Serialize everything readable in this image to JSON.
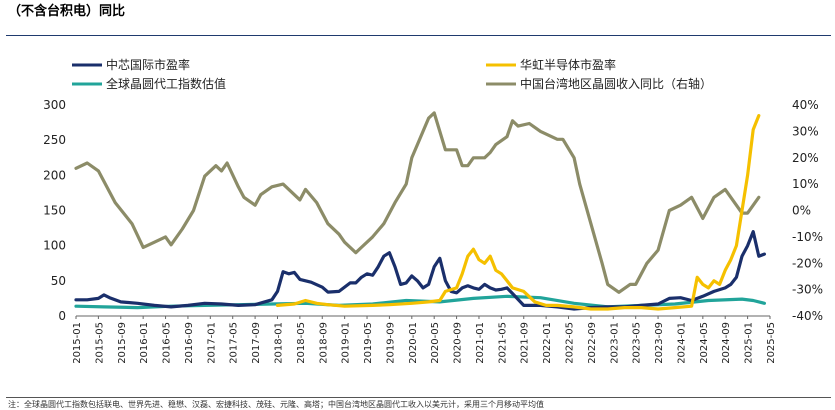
{
  "header": {
    "title": "（不含台积电）同比"
  },
  "footnote": "注：全球晶圆代工指数包括联电、世界先进、稳懋、汉磊、宏捷科技、茂硅、元隆、高塔；中国台湾地区晶圆代工收入以美元计，采用三个月移动平均值",
  "chart_data": {
    "type": "line",
    "title": "",
    "x_labels": [
      "2015-01",
      "2015-05",
      "2015-09",
      "2016-01",
      "2016-05",
      "2016-09",
      "2017-01",
      "2017-05",
      "2017-09",
      "2018-01",
      "2018-05",
      "2018-09",
      "2019-01",
      "2019-05",
      "2019-09",
      "2020-01",
      "2020-05",
      "2020-09",
      "2021-01",
      "2021-05",
      "2021-09",
      "2022-01",
      "2022-05",
      "2022-09",
      "2023-01",
      "2023-05",
      "2023-09",
      "2024-01",
      "2024-05",
      "2024-09",
      "2025-01",
      "2025-05"
    ],
    "x_start": "2015-01",
    "x_end": "2025-05",
    "left_axis": {
      "min": 0,
      "max": 300,
      "ticks": [
        "0",
        "50",
        "100",
        "150",
        "200",
        "250",
        "300"
      ]
    },
    "right_axis": {
      "min": -40,
      "max": 40,
      "ticks": [
        "-40%",
        "-30%",
        "-20%",
        "-10%",
        "0%",
        "10%",
        "20%",
        "30%",
        "40%"
      ]
    },
    "legend": [
      {
        "name": "中芯国际市盈率",
        "color": "#1a2f6b"
      },
      {
        "name": "华虹半导体市盈率",
        "color": "#f5c000"
      },
      {
        "name": "全球晶圆代工指数估值",
        "color": "#21a49a"
      },
      {
        "name": "中国台湾地区晶圆收入同比（右轴）",
        "color": "#8c8c68"
      }
    ],
    "series": [
      {
        "name": "中芯国际市盈率",
        "axis": "left",
        "color": "#1a2f6b",
        "points": [
          [
            "2015-01",
            23
          ],
          [
            "2015-03",
            23
          ],
          [
            "2015-05",
            25
          ],
          [
            "2015-06",
            30
          ],
          [
            "2015-07",
            26
          ],
          [
            "2015-09",
            20
          ],
          [
            "2015-12",
            18
          ],
          [
            "2016-03",
            15
          ],
          [
            "2016-06",
            13
          ],
          [
            "2016-09",
            15
          ],
          [
            "2016-12",
            18
          ],
          [
            "2017-03",
            17
          ],
          [
            "2017-06",
            15
          ],
          [
            "2017-09",
            16
          ],
          [
            "2017-12",
            23
          ],
          [
            "2018-01",
            35
          ],
          [
            "2018-02",
            63
          ],
          [
            "2018-03",
            60
          ],
          [
            "2018-04",
            62
          ],
          [
            "2018-05",
            52
          ],
          [
            "2018-07",
            48
          ],
          [
            "2018-09",
            41
          ],
          [
            "2018-10",
            34
          ],
          [
            "2018-12",
            35
          ],
          [
            "2019-02",
            47
          ],
          [
            "2019-03",
            47
          ],
          [
            "2019-04",
            55
          ],
          [
            "2019-05",
            60
          ],
          [
            "2019-06",
            58
          ],
          [
            "2019-07",
            70
          ],
          [
            "2019-08",
            85
          ],
          [
            "2019-09",
            90
          ],
          [
            "2019-10",
            70
          ],
          [
            "2019-11",
            45
          ],
          [
            "2019-12",
            47
          ],
          [
            "2020-01",
            57
          ],
          [
            "2020-02",
            50
          ],
          [
            "2020-03",
            40
          ],
          [
            "2020-04",
            45
          ],
          [
            "2020-05",
            70
          ],
          [
            "2020-06",
            82
          ],
          [
            "2020-07",
            50
          ],
          [
            "2020-08",
            35
          ],
          [
            "2020-09",
            33
          ],
          [
            "2020-10",
            40
          ],
          [
            "2020-11",
            43
          ],
          [
            "2020-12",
            40
          ],
          [
            "2021-01",
            38
          ],
          [
            "2021-02",
            45
          ],
          [
            "2021-03",
            40
          ],
          [
            "2021-04",
            37
          ],
          [
            "2021-05",
            38
          ],
          [
            "2021-06",
            40
          ],
          [
            "2021-07",
            32
          ],
          [
            "2021-09",
            15
          ],
          [
            "2021-12",
            15
          ],
          [
            "2022-03",
            13
          ],
          [
            "2022-06",
            10
          ],
          [
            "2022-09",
            12
          ],
          [
            "2022-12",
            13
          ],
          [
            "2023-03",
            13
          ],
          [
            "2023-06",
            15
          ],
          [
            "2023-09",
            17
          ],
          [
            "2023-11",
            25
          ],
          [
            "2024-01",
            26
          ],
          [
            "2024-03",
            22
          ],
          [
            "2024-05",
            28
          ],
          [
            "2024-07",
            35
          ],
          [
            "2024-09",
            40
          ],
          [
            "2024-10",
            45
          ],
          [
            "2024-11",
            55
          ],
          [
            "2024-12",
            85
          ],
          [
            "2025-01",
            100
          ],
          [
            "2025-02",
            120
          ],
          [
            "2025-03",
            85
          ],
          [
            "2025-04",
            88
          ]
        ]
      },
      {
        "name": "华虹半导体市盈率",
        "axis": "left",
        "color": "#f5c000",
        "points": [
          [
            "2018-01",
            15
          ],
          [
            "2018-04",
            17
          ],
          [
            "2018-06",
            22
          ],
          [
            "2018-08",
            18
          ],
          [
            "2018-10",
            16
          ],
          [
            "2019-01",
            14
          ],
          [
            "2019-06",
            15
          ],
          [
            "2019-09",
            16
          ],
          [
            "2020-01",
            18
          ],
          [
            "2020-04",
            20
          ],
          [
            "2020-06",
            22
          ],
          [
            "2020-07",
            35
          ],
          [
            "2020-09",
            40
          ],
          [
            "2020-10",
            60
          ],
          [
            "2020-11",
            85
          ],
          [
            "2020-12",
            95
          ],
          [
            "2021-01",
            80
          ],
          [
            "2021-02",
            75
          ],
          [
            "2021-03",
            85
          ],
          [
            "2021-04",
            65
          ],
          [
            "2021-05",
            60
          ],
          [
            "2021-06",
            50
          ],
          [
            "2021-07",
            40
          ],
          [
            "2021-09",
            35
          ],
          [
            "2021-11",
            20
          ],
          [
            "2022-01",
            15
          ],
          [
            "2022-03",
            15
          ],
          [
            "2022-06",
            13
          ],
          [
            "2022-09",
            10
          ],
          [
            "2022-12",
            10
          ],
          [
            "2023-03",
            12
          ],
          [
            "2023-06",
            12
          ],
          [
            "2023-09",
            10
          ],
          [
            "2023-12",
            12
          ],
          [
            "2024-03",
            14
          ],
          [
            "2024-04",
            55
          ],
          [
            "2024-05",
            45
          ],
          [
            "2024-06",
            40
          ],
          [
            "2024-07",
            50
          ],
          [
            "2024-08",
            45
          ],
          [
            "2024-09",
            65
          ],
          [
            "2024-10",
            80
          ],
          [
            "2024-11",
            100
          ],
          [
            "2025-01",
            200
          ],
          [
            "2025-02",
            265
          ],
          [
            "2025-03",
            285
          ]
        ]
      },
      {
        "name": "全球晶圆代工指数估值",
        "axis": "left",
        "color": "#21a49a",
        "points": [
          [
            "2015-01",
            14
          ],
          [
            "2015-06",
            13
          ],
          [
            "2015-12",
            12
          ],
          [
            "2016-06",
            14
          ],
          [
            "2016-12",
            15
          ],
          [
            "2017-06",
            16
          ],
          [
            "2017-12",
            17
          ],
          [
            "2018-06",
            18
          ],
          [
            "2018-12",
            15
          ],
          [
            "2019-06",
            17
          ],
          [
            "2019-12",
            22
          ],
          [
            "2020-06",
            20
          ],
          [
            "2020-12",
            25
          ],
          [
            "2021-06",
            28
          ],
          [
            "2021-12",
            26
          ],
          [
            "2022-06",
            18
          ],
          [
            "2022-12",
            13
          ],
          [
            "2023-06",
            15
          ],
          [
            "2023-12",
            17
          ],
          [
            "2024-06",
            22
          ],
          [
            "2024-12",
            24
          ],
          [
            "2025-02",
            22
          ],
          [
            "2025-04",
            18
          ]
        ]
      },
      {
        "name": "中国台湾地区晶圆收入同比（右轴）",
        "axis": "right",
        "color": "#8c8c68",
        "points": [
          [
            "2015-01",
            16
          ],
          [
            "2015-03",
            18
          ],
          [
            "2015-05",
            15
          ],
          [
            "2015-08",
            3
          ],
          [
            "2015-11",
            -5
          ],
          [
            "2016-01",
            -14
          ],
          [
            "2016-03",
            -12
          ],
          [
            "2016-05",
            -10
          ],
          [
            "2016-06",
            -13
          ],
          [
            "2016-08",
            -7
          ],
          [
            "2016-10",
            0
          ],
          [
            "2016-12",
            13
          ],
          [
            "2017-02",
            17
          ],
          [
            "2017-03",
            15
          ],
          [
            "2017-04",
            18
          ],
          [
            "2017-06",
            9
          ],
          [
            "2017-07",
            5
          ],
          [
            "2017-09",
            2
          ],
          [
            "2017-10",
            6
          ],
          [
            "2017-12",
            9
          ],
          [
            "2018-02",
            10
          ],
          [
            "2018-05",
            4
          ],
          [
            "2018-06",
            8
          ],
          [
            "2018-08",
            3
          ],
          [
            "2018-10",
            -5
          ],
          [
            "2018-12",
            -9
          ],
          [
            "2019-01",
            -12
          ],
          [
            "2019-02",
            -14
          ],
          [
            "2019-03",
            -16
          ],
          [
            "2019-04",
            -14
          ],
          [
            "2019-06",
            -10
          ],
          [
            "2019-08",
            -5
          ],
          [
            "2019-10",
            3
          ],
          [
            "2019-12",
            10
          ],
          [
            "2020-01",
            20
          ],
          [
            "2020-02",
            25
          ],
          [
            "2020-04",
            35
          ],
          [
            "2020-05",
            37
          ],
          [
            "2020-07",
            23
          ],
          [
            "2020-09",
            23
          ],
          [
            "2020-10",
            17
          ],
          [
            "2020-11",
            17
          ],
          [
            "2020-12",
            20
          ],
          [
            "2021-02",
            20
          ],
          [
            "2021-03",
            22
          ],
          [
            "2021-04",
            25
          ],
          [
            "2021-06",
            28
          ],
          [
            "2021-07",
            34
          ],
          [
            "2021-08",
            32
          ],
          [
            "2021-10",
            33
          ],
          [
            "2021-12",
            30
          ],
          [
            "2022-02",
            28
          ],
          [
            "2022-03",
            27
          ],
          [
            "2022-04",
            27
          ],
          [
            "2022-06",
            20
          ],
          [
            "2022-07",
            10
          ],
          [
            "2022-09",
            -5
          ],
          [
            "2022-11",
            -20
          ],
          [
            "2022-12",
            -28
          ],
          [
            "2023-02",
            -31
          ],
          [
            "2023-04",
            -28
          ],
          [
            "2023-05",
            -28
          ],
          [
            "2023-07",
            -20
          ],
          [
            "2023-09",
            -15
          ],
          [
            "2023-11",
            0
          ],
          [
            "2024-01",
            2
          ],
          [
            "2024-03",
            5
          ],
          [
            "2024-05",
            -3
          ],
          [
            "2024-07",
            5
          ],
          [
            "2024-09",
            8
          ],
          [
            "2024-10",
            5
          ],
          [
            "2024-12",
            -1
          ],
          [
            "2025-01",
            -1
          ],
          [
            "2025-03",
            5
          ]
        ]
      }
    ]
  }
}
